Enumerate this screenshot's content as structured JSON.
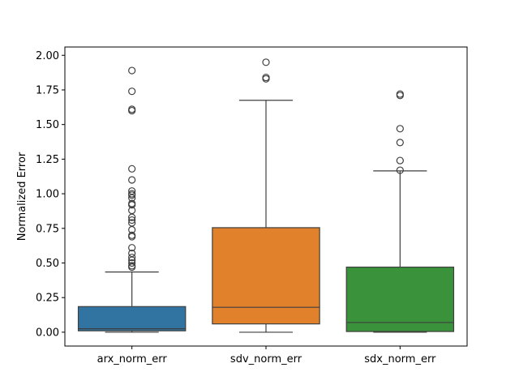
{
  "chart_data": {
    "type": "box",
    "title": "",
    "xlabel": "",
    "ylabel": "Normalized Error",
    "ylim": [
      -0.1,
      2.06
    ],
    "yticks": [
      "0.00",
      "0.25",
      "0.50",
      "0.75",
      "1.00",
      "1.25",
      "1.50",
      "1.75",
      "2.00"
    ],
    "grid": false,
    "categories": [
      "arx_norm_err",
      "sdv_norm_err",
      "sdx_norm_err"
    ],
    "boxes": [
      {
        "name": "arx_norm_err",
        "color": "#3274a1",
        "min": 0.0,
        "q1": 0.01,
        "median": 0.025,
        "q3": 0.185,
        "max": 0.435,
        "outliers": [
          0.47,
          0.48,
          0.5,
          0.52,
          0.54,
          0.57,
          0.61,
          0.69,
          0.7,
          0.74,
          0.79,
          0.81,
          0.83,
          0.88,
          0.92,
          0.93,
          0.97,
          0.99,
          1.0,
          1.02,
          1.1,
          1.18,
          1.6,
          1.61,
          1.74,
          1.89
        ]
      },
      {
        "name": "sdv_norm_err",
        "color": "#e1812c",
        "min": 0.0,
        "q1": 0.06,
        "median": 0.18,
        "q3": 0.755,
        "max": 1.675,
        "outliers": [
          1.83,
          1.84,
          1.95
        ]
      },
      {
        "name": "sdx_norm_err",
        "color": "#3a923a",
        "min": 0.0,
        "q1": 0.005,
        "median": 0.07,
        "q3": 0.47,
        "max": 1.165,
        "outliers": [
          1.17,
          1.24,
          1.37,
          1.47,
          1.71,
          1.72
        ]
      }
    ]
  }
}
